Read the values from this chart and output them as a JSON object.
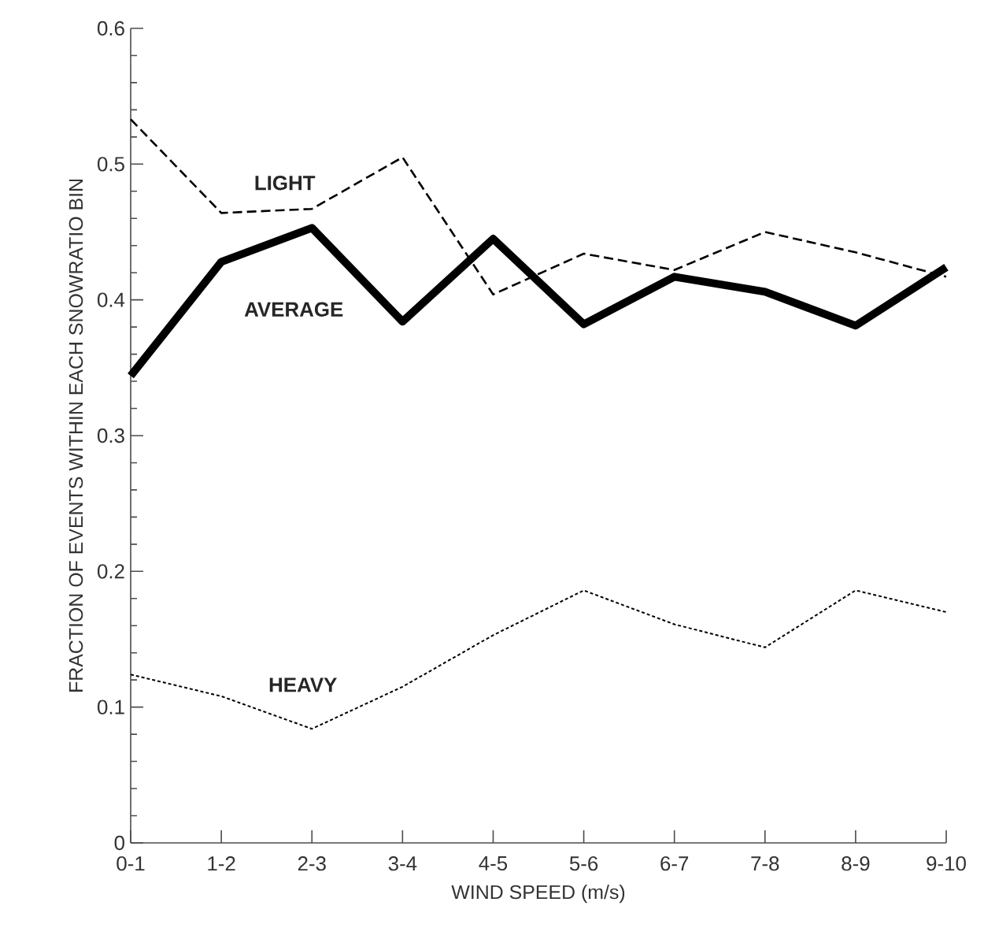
{
  "chart_data": {
    "type": "line",
    "xlabel": "WIND SPEED (m/s)",
    "ylabel": "FRACTION OF EVENTS WITHIN EACH SNOWRATIO BIN",
    "categories": [
      "0-1",
      "1-2",
      "2-3",
      "3-4",
      "4-5",
      "5-6",
      "6-7",
      "7-8",
      "8-9",
      "9-10"
    ],
    "ylim": [
      0,
      0.6
    ],
    "yticks": [
      0,
      0.1,
      0.2,
      0.3,
      0.4,
      0.5,
      0.6
    ],
    "grid": false,
    "series": [
      {
        "name": "LIGHT",
        "color": "#000000",
        "line_style": "dashed",
        "values": [
          0.533,
          0.464,
          0.467,
          0.505,
          0.404,
          0.434,
          0.422,
          0.45,
          0.435,
          0.417
        ]
      },
      {
        "name": "AVERAGE",
        "color": "#000000",
        "line_style": "solid",
        "values": [
          0.344,
          0.428,
          0.453,
          0.384,
          0.445,
          0.382,
          0.417,
          0.406,
          0.381,
          0.424
        ]
      },
      {
        "name": "HEAVY",
        "color": "#000000",
        "line_style": "dotted",
        "values": [
          0.124,
          0.108,
          0.084,
          0.115,
          0.153,
          0.186,
          0.161,
          0.144,
          0.186,
          0.17
        ]
      }
    ]
  }
}
